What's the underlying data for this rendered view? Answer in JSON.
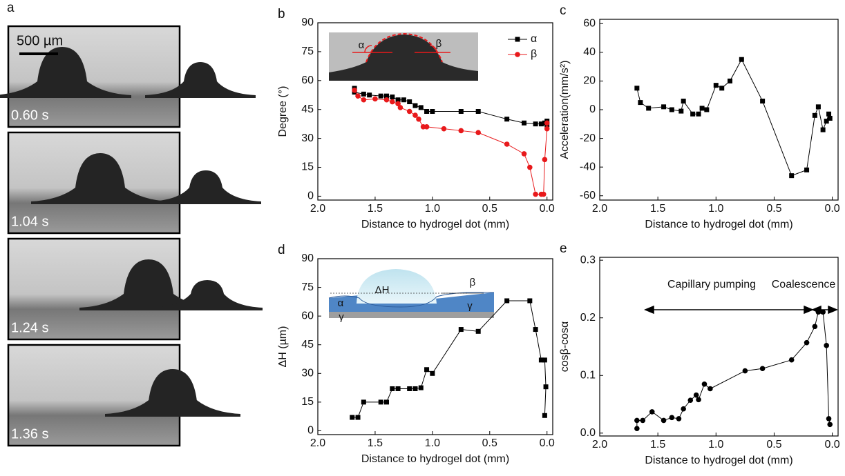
{
  "panel_a": {
    "label": "a",
    "scale_bar": "500 µm",
    "frames": [
      "0.60 s",
      "1.04 s",
      "1.24 s",
      "1.36 s"
    ]
  },
  "chart_data": [
    {
      "type": "line",
      "panel_label": "b",
      "xlabel": "Distance to hydrogel dot (mm)",
      "ylabel": "Degree (°)",
      "xlim": [
        2.0,
        -0.05
      ],
      "xticks": [
        {
          "value": 2,
          "label": "2.0"
        },
        1.5,
        {
          "value": 1,
          "label": "1.0"
        },
        0.5,
        {
          "value": 0,
          "label": "0.0"
        }
      ],
      "ylim": [
        -2,
        90
      ],
      "yticks": [
        0,
        15,
        30,
        45,
        60,
        75,
        90
      ],
      "legend": "upper right",
      "inset_labels": [
        "α",
        "β"
      ],
      "series": [
        {
          "name": "α",
          "color": "#000000",
          "marker": "square",
          "x": [
            1.68,
            1.68,
            1.6,
            1.55,
            1.45,
            1.4,
            1.35,
            1.3,
            1.25,
            1.2,
            1.15,
            1.1,
            1.05,
            1.0,
            0.75,
            0.6,
            0.35,
            0.2,
            0.1,
            0.05,
            0.02,
            0.0,
            0.0
          ],
          "values": [
            56,
            54,
            53,
            52.5,
            52,
            52,
            51.5,
            50,
            50,
            49,
            47,
            46,
            44,
            44,
            44,
            44,
            40,
            38,
            37.5,
            37.5,
            38,
            37,
            39
          ]
        },
        {
          "name": "β",
          "color": "#e8191b",
          "marker": "circle",
          "x": [
            1.68,
            1.65,
            1.6,
            1.5,
            1.4,
            1.35,
            1.3,
            1.28,
            1.2,
            1.15,
            1.12,
            1.08,
            1.05,
            0.9,
            0.75,
            0.6,
            0.35,
            0.2,
            0.15,
            0.1,
            0.05,
            0.03,
            0.02,
            0.0,
            0.0
          ],
          "values": [
            55,
            52,
            50,
            50.5,
            50,
            49,
            48,
            46,
            44,
            42,
            40,
            36,
            36,
            35,
            34,
            33,
            27,
            22,
            15,
            1,
            1,
            1,
            19,
            35,
            38
          ]
        }
      ]
    },
    {
      "type": "line",
      "panel_label": "c",
      "xlabel": "Distance to hydrogel dot (mm)",
      "ylabel": "Acceleration(mm/s²)",
      "xlim": [
        2.0,
        -0.05
      ],
      "xticks": [
        {
          "value": 2,
          "label": "2.0"
        },
        1.5,
        {
          "value": 1,
          "label": "1.0"
        },
        0.5,
        {
          "value": 0,
          "label": "0.0"
        }
      ],
      "ylim": [
        -63,
        63
      ],
      "yticks": [
        -60,
        -40,
        -20,
        0,
        20,
        40,
        60
      ],
      "series": [
        {
          "color": "#000000",
          "marker": "square",
          "x": [
            1.68,
            1.65,
            1.58,
            1.45,
            1.38,
            1.3,
            1.28,
            1.2,
            1.15,
            1.12,
            1.08,
            1.0,
            0.95,
            0.88,
            0.78,
            0.6,
            0.35,
            0.22,
            0.15,
            0.12,
            0.08,
            0.05,
            0.03,
            0.02
          ],
          "values": [
            15,
            5,
            1,
            2,
            0,
            -1,
            6,
            -3,
            -3,
            1,
            0,
            17,
            15,
            20,
            35,
            6,
            -46,
            -42,
            -4,
            2,
            -14,
            -8,
            -3,
            -6
          ]
        }
      ]
    },
    {
      "type": "line",
      "panel_label": "d",
      "xlabel": "Distance to hydrogel dot (mm)",
      "ylabel": "ΔH (µm)",
      "xlim": [
        2.0,
        -0.05
      ],
      "xticks": [
        {
          "value": 2,
          "label": "2.0"
        },
        1.5,
        {
          "value": 1,
          "label": "1.0"
        },
        0.5,
        {
          "value": 0,
          "label": "0.0"
        }
      ],
      "ylim": [
        -2,
        90
      ],
      "yticks": [
        0,
        15,
        30,
        45,
        60,
        75,
        90
      ],
      "inset_labels": [
        "ΔH",
        "α",
        "β",
        "γ",
        "γ"
      ],
      "series": [
        {
          "color": "#000000",
          "marker": "square",
          "x": [
            1.7,
            1.65,
            1.6,
            1.45,
            1.4,
            1.35,
            1.3,
            1.2,
            1.15,
            1.1,
            1.05,
            1.0,
            0.75,
            0.6,
            0.35,
            0.15,
            0.1,
            0.05,
            0.02,
            0.01,
            0.02
          ],
          "values": [
            7,
            7,
            15,
            15,
            15,
            22,
            22,
            22,
            22,
            22.5,
            32,
            30,
            53,
            52,
            68,
            68,
            53,
            37,
            37,
            23,
            8
          ]
        }
      ]
    },
    {
      "type": "line",
      "panel_label": "e",
      "xlabel": "Distance to hydrogel dot (mm)",
      "ylabel": "cosβ-cosα",
      "xlim": [
        2.0,
        -0.05
      ],
      "xticks": [
        {
          "value": 2,
          "label": "2.0"
        },
        1.5,
        {
          "value": 1,
          "label": "1.0"
        },
        0.5,
        {
          "value": 0,
          "label": "0.0"
        }
      ],
      "ylim": [
        -0.005,
        0.305
      ],
      "yticks": [
        {
          "value": 0,
          "label": "0.0"
        },
        0.1,
        0.2,
        0.3
      ],
      "annotations": [
        "Capillary pumping",
        "Coalescence"
      ],
      "series": [
        {
          "color": "#000000",
          "marker": "circle",
          "x": [
            1.68,
            1.68,
            1.63,
            1.55,
            1.45,
            1.38,
            1.32,
            1.28,
            1.22,
            1.17,
            1.15,
            1.1,
            1.05,
            0.75,
            0.6,
            0.35,
            0.22,
            0.15,
            0.12,
            0.08,
            0.05,
            0.03,
            0.02
          ],
          "values": [
            0.008,
            0.022,
            0.022,
            0.037,
            0.022,
            0.027,
            0.025,
            0.042,
            0.057,
            0.066,
            0.058,
            0.085,
            0.077,
            0.108,
            0.112,
            0.127,
            0.157,
            0.185,
            0.21,
            0.21,
            0.152,
            0.025,
            0.015
          ]
        }
      ]
    }
  ]
}
